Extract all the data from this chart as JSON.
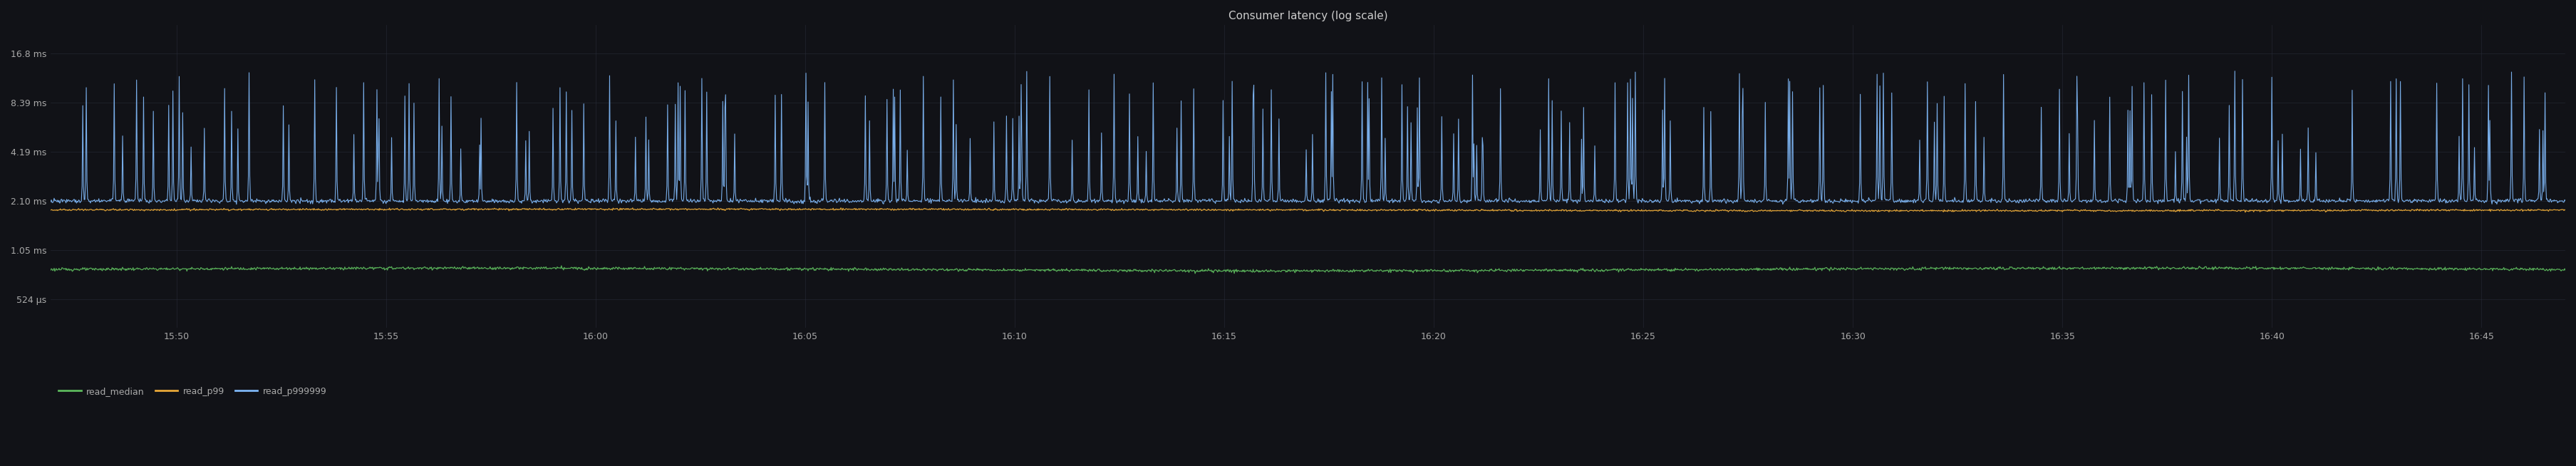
{
  "title": "Consumer latency (log scale)",
  "title_fontsize": 11,
  "title_color": "#cccccc",
  "bg_color": "#111217",
  "plot_bg_color": "#111217",
  "grid_color": "#2a2d3a",
  "tick_color": "#aaaaaa",
  "tick_fontsize": 9,
  "legend_labels": [
    "read_median",
    "read_p99",
    "read_p999999"
  ],
  "legend_colors": [
    "#5cb85c",
    "#e8a838",
    "#7eb6f5"
  ],
  "line_colors": {
    "median": "#5cb85c",
    "p99": "#e8a838",
    "p999999": "#7eb6f5"
  },
  "ytick_labels": [
    "524 μs",
    "1.05 ms",
    "2.10 ms",
    "4.19 ms",
    "8.39 ms",
    "16.8 ms"
  ],
  "ytick_values": [
    0.000524,
    0.00105,
    0.0021,
    0.00419,
    0.00839,
    0.0168
  ],
  "x_tick_labels": [
    "15:50",
    "15:55",
    "16:00",
    "16:05",
    "16:10",
    "16:15",
    "16:20",
    "16:25",
    "16:30",
    "16:35",
    "16:40",
    "16:45"
  ],
  "x_tick_positions": [
    3,
    8,
    13,
    18,
    23,
    28,
    33,
    38,
    43,
    48,
    53,
    58
  ],
  "xlim": [
    0,
    60
  ],
  "ylim_low": 0.00035,
  "ylim_high": 0.025,
  "median_base": 0.0008,
  "p99_base": 0.00185,
  "p999999_base": 0.0021,
  "num_points": 3600,
  "linewidth_median": 0.9,
  "linewidth_p99": 0.9,
  "linewidth_p999999": 0.8
}
